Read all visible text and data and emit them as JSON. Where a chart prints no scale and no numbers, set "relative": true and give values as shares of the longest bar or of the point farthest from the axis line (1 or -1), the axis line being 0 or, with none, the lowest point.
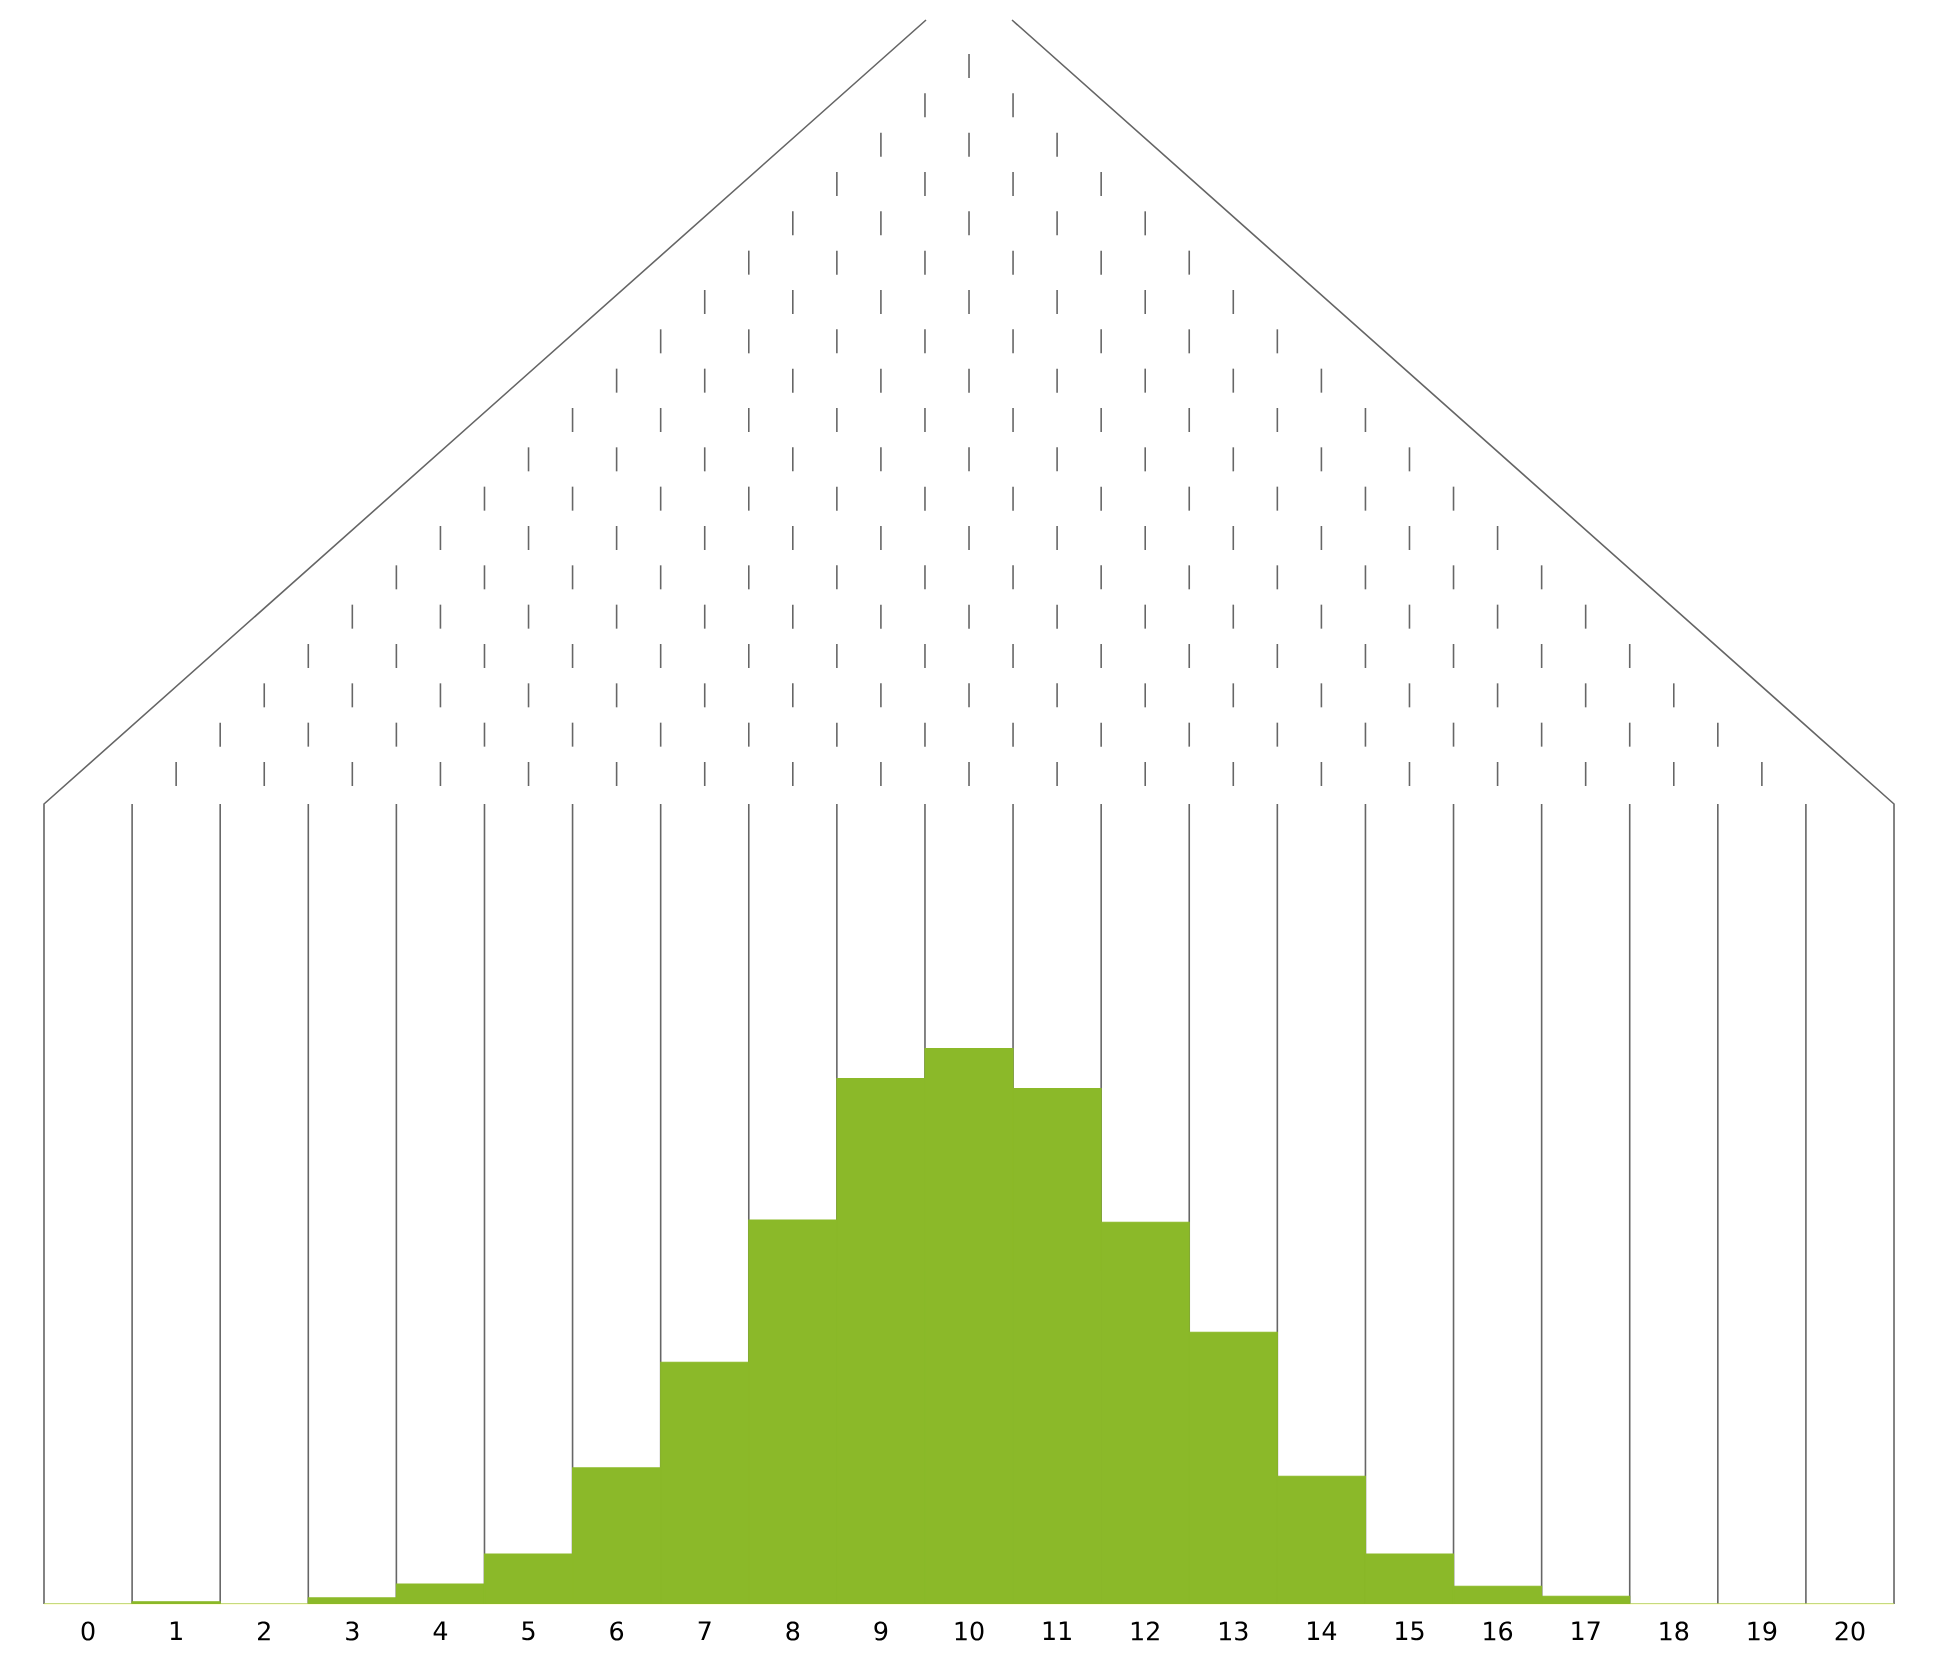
{
  "chart_data": {
    "type": "bar",
    "relative": true,
    "color": "#8bb929",
    "categories": [
      "0",
      "1",
      "2",
      "3",
      "4",
      "5",
      "6",
      "7",
      "8",
      "9",
      "10",
      "11",
      "12",
      "13",
      "14",
      "15",
      "16",
      "17",
      "18",
      "19",
      "20"
    ],
    "values": [
      0,
      0.004,
      0,
      0.011,
      0.036,
      0.09,
      0.245,
      0.435,
      0.691,
      0.946,
      1,
      0.928,
      0.687,
      0.489,
      0.23,
      0.09,
      0.032,
      0.014,
      0,
      0,
      0
    ]
  }
}
